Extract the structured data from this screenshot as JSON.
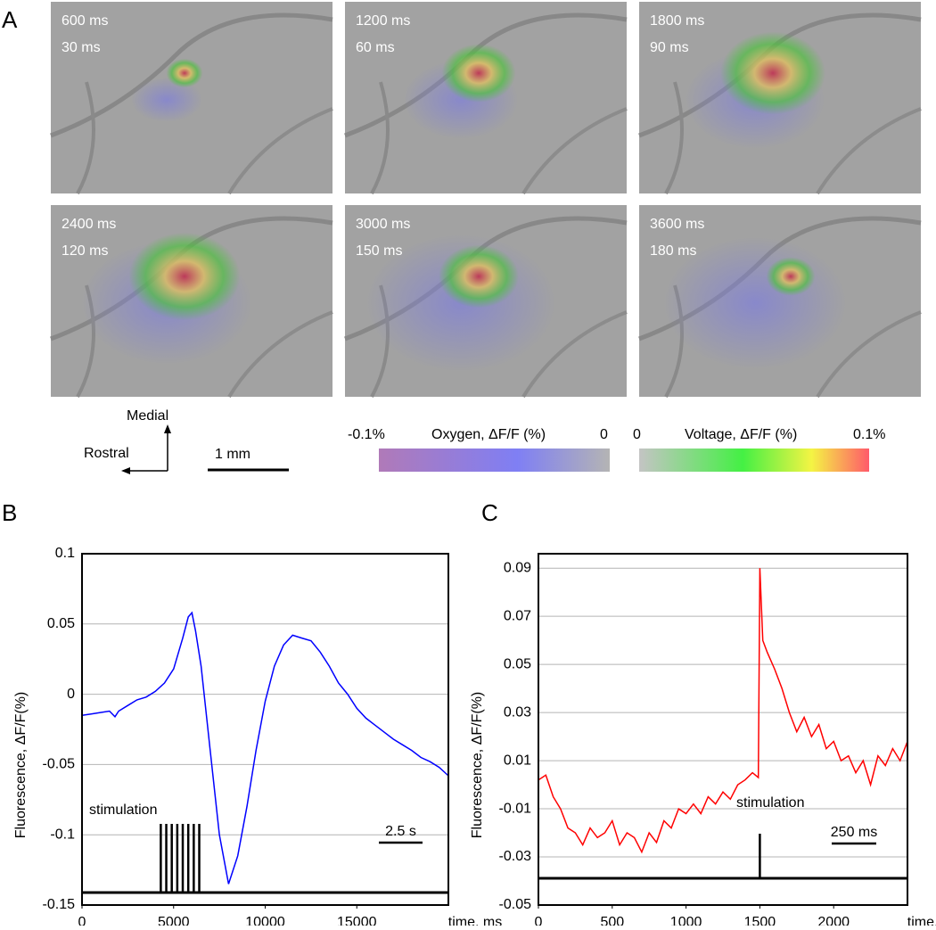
{
  "panel_a": {
    "label": "A",
    "images": [
      {
        "time": "600 ms",
        "frame": "30 ms"
      },
      {
        "time": "1200 ms",
        "frame": "60 ms"
      },
      {
        "time": "1800 ms",
        "frame": "90 ms"
      },
      {
        "time": "2400 ms",
        "frame": "120 ms"
      },
      {
        "time": "3000 ms",
        "frame": "150 ms"
      },
      {
        "time": "3600 ms",
        "frame": "180 ms"
      }
    ],
    "orientation": {
      "up": "Medial",
      "left": "Rostral"
    },
    "scale_bar": "1 mm",
    "oxygen_scale": {
      "min": "-0.1%",
      "title": "Oxygen, ΔF/F (%)",
      "max": "0"
    },
    "voltage_scale": {
      "min": "0",
      "title": "Voltage, ΔF/F (%)",
      "max": "0.1%"
    }
  },
  "chart_data": [
    {
      "type": "line",
      "label": "B",
      "y_label": "Fluorescence, ΔF/F(%)",
      "x_label": "time, ms",
      "color": "#0000ff",
      "grid": true,
      "x": [
        0,
        500,
        1000,
        1500,
        1800,
        2000,
        2500,
        3000,
        3500,
        4000,
        4500,
        5000,
        5500,
        5800,
        6000,
        6200,
        6500,
        7000,
        7500,
        8000,
        8500,
        9000,
        9500,
        10000,
        10500,
        11000,
        11500,
        12000,
        12500,
        13000,
        13500,
        14000,
        14500,
        15000,
        15500,
        16000,
        16500,
        17000,
        17500,
        18000,
        18500,
        19000,
        19500,
        20000
      ],
      "values": [
        -0.015,
        -0.014,
        -0.013,
        -0.012,
        -0.016,
        -0.012,
        -0.008,
        -0.004,
        -0.002,
        0.002,
        0.008,
        0.018,
        0.04,
        0.055,
        0.058,
        0.045,
        0.02,
        -0.04,
        -0.1,
        -0.135,
        -0.115,
        -0.08,
        -0.04,
        -0.005,
        0.02,
        0.035,
        0.042,
        0.04,
        0.038,
        0.03,
        0.02,
        0.008,
        0.0,
        -0.01,
        -0.017,
        -0.022,
        -0.027,
        -0.032,
        -0.036,
        -0.04,
        -0.045,
        -0.048,
        -0.052,
        -0.058
      ],
      "xlim": [
        0,
        20000
      ],
      "xticks": [
        0,
        5000,
        10000,
        15000
      ],
      "ylim": [
        -0.15,
        0.1
      ],
      "yticks": [
        -0.15,
        -0.1,
        -0.05,
        0,
        0.05,
        0.1
      ],
      "annotation": "stimulation",
      "stimulation_x": [
        4300,
        4600,
        4900,
        5200,
        5500,
        5800,
        6100,
        6400
      ],
      "scale_bar": "2.5 s"
    },
    {
      "type": "line",
      "label": "C",
      "y_label": "Fluorescence, ΔF/F(%)",
      "x_label": "time, ms",
      "color": "#ff0000",
      "grid": true,
      "x": [
        0,
        50,
        100,
        150,
        200,
        250,
        300,
        350,
        400,
        450,
        500,
        550,
        600,
        650,
        700,
        750,
        800,
        850,
        900,
        950,
        1000,
        1050,
        1100,
        1150,
        1200,
        1250,
        1300,
        1350,
        1400,
        1450,
        1490,
        1500,
        1520,
        1550,
        1600,
        1650,
        1700,
        1750,
        1800,
        1850,
        1900,
        1950,
        2000,
        2050,
        2100,
        2150,
        2200,
        2250,
        2300,
        2350,
        2400,
        2450,
        2500
      ],
      "values": [
        0.002,
        0.004,
        -0.005,
        -0.01,
        -0.018,
        -0.02,
        -0.025,
        -0.018,
        -0.022,
        -0.02,
        -0.015,
        -0.025,
        -0.02,
        -0.022,
        -0.028,
        -0.02,
        -0.024,
        -0.015,
        -0.018,
        -0.01,
        -0.012,
        -0.008,
        -0.012,
        -0.005,
        -0.008,
        -0.003,
        -0.006,
        0.0,
        0.002,
        0.005,
        0.003,
        0.09,
        0.06,
        0.055,
        0.048,
        0.04,
        0.03,
        0.022,
        0.028,
        0.02,
        0.025,
        0.015,
        0.018,
        0.01,
        0.012,
        0.005,
        0.01,
        0.0,
        0.012,
        0.008,
        0.015,
        0.01,
        0.018
      ],
      "xlim": [
        0,
        2500
      ],
      "xticks": [
        0,
        500,
        1000,
        1500,
        2000
      ],
      "ylim": [
        -0.05,
        0.096
      ],
      "yticks": [
        -0.05,
        -0.03,
        -0.01,
        0.01,
        0.03,
        0.05,
        0.07,
        0.09
      ],
      "annotation": "stimulation",
      "stimulation_x": [
        1500
      ],
      "scale_bar": "250 ms"
    }
  ]
}
